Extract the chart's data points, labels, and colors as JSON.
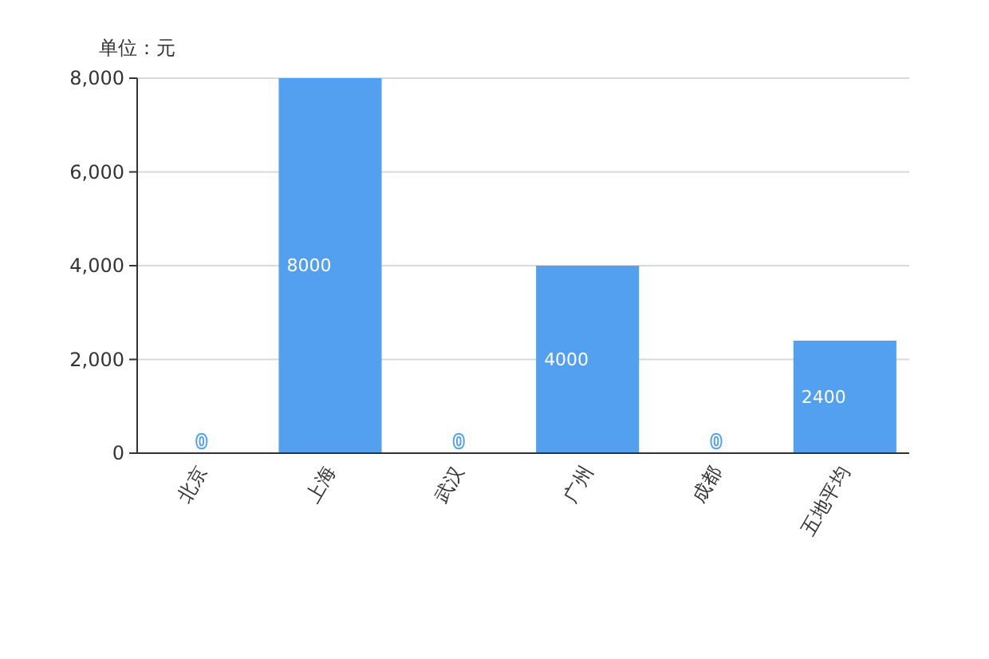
{
  "chart_data": {
    "type": "bar",
    "ylabel": "单位：元",
    "categories": [
      "北京",
      "上海",
      "武汉",
      "广州",
      "成都",
      "五地平均"
    ],
    "values": [
      0,
      8000,
      0,
      4000,
      0,
      2400
    ],
    "color": "#539ff0",
    "ylim": [
      0,
      8000
    ],
    "yticks": [
      0,
      {
        "value": 2000,
        "label": "2,000"
      },
      {
        "value": 4000,
        "label": "4,000"
      },
      {
        "value": 6000,
        "label": "6,000"
      },
      {
        "value": 8000,
        "label": "8,000"
      }
    ],
    "grid": "y",
    "data_labels": true
  }
}
